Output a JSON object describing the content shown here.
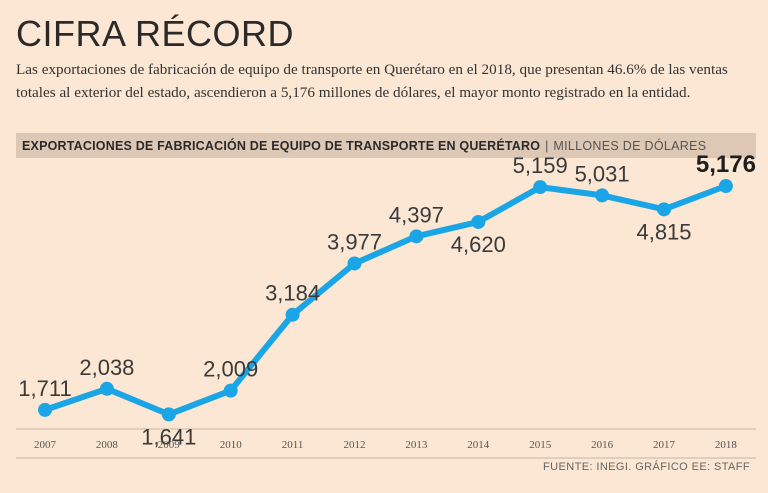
{
  "title": "CIFRA RÉCORD",
  "subtitle": "Las exportaciones de fabricación de equipo de transporte en Querétaro en el 2018, que presentan 46.6% de las ventas totales al exterior del estado, ascendieron a 5,176 millones de dólares, el mayor monto registrado en la entidad.",
  "chart_header": {
    "title": "EXPORTACIONES DE FABRICACIÓN DE EQUIPO DE TRANSPORTE EN QUERÉTARO",
    "separator": "|",
    "unit": "MILLONES DE DÓLARES"
  },
  "footer": "FUENTE: INEGI. GRÁFICO EE: STAFF",
  "colors": {
    "line": "#1aa6e6",
    "background": "#fbe7d3",
    "header_bar": "#dcc8b5"
  },
  "chart_data": {
    "type": "line",
    "title": "EXPORTACIONES DE FABRICACIÓN DE EQUIPO DE TRANSPORTE EN QUERÉTARO",
    "ylabel": "MILLONES DE DÓLARES",
    "xlabel": "",
    "ylim": [
      1400,
      5300
    ],
    "categories": [
      "2007",
      "2008",
      "2009",
      "2010",
      "2011",
      "2012",
      "2013",
      "2014",
      "2015",
      "2016",
      "2017",
      "2018"
    ],
    "values": [
      1711,
      2038,
      1641,
      2009,
      3184,
      3977,
      4397,
      4620,
      5159,
      5031,
      4815,
      5176
    ],
    "labels": [
      "1,711",
      "2,038",
      "1,641",
      "2,009",
      "3,184",
      "3,977",
      "4,397",
      "4,620",
      "5,159",
      "5,031",
      "4,815",
      "5,176"
    ],
    "label_position": [
      "above",
      "above",
      "below",
      "above",
      "above",
      "above",
      "above",
      "below",
      "above",
      "above",
      "below",
      "above"
    ],
    "highlight_index": 11
  }
}
